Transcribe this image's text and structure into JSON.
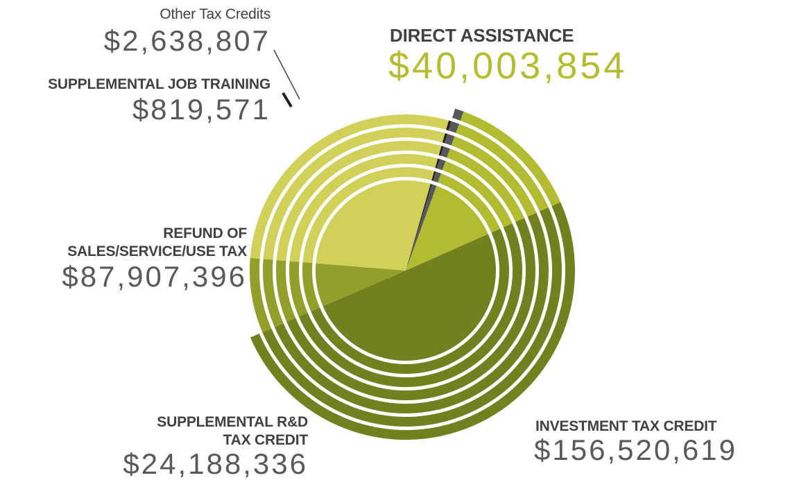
{
  "chart_data": {
    "type": "pie",
    "slices": [
      {
        "label": "DIRECT ASSISTANCE",
        "value": 40003854,
        "value_label": "$40,003,854",
        "color": "#b3bb31"
      },
      {
        "label": "INVESTMENT TAX CREDIT",
        "value": 156520619,
        "value_label": "$156,520,619",
        "color": "#738020"
      },
      {
        "label": "SUPPLEMENTAL R&D TAX CREDIT",
        "value": 24188336,
        "value_label": "$24,188,336",
        "color": "#939f2b"
      },
      {
        "label": "REFUND OF SALES/SERVICE/USE TAX",
        "value": 87907396,
        "value_label": "$87,907,396",
        "color": "#d1d15a"
      },
      {
        "label": "SUPPLEMENTAL JOB TRAINING",
        "value": 819571,
        "value_label": "$819,571",
        "color": "#231f20"
      },
      {
        "label": "Other Tax Credits",
        "value": 2638807,
        "value_label": "$2,638,807",
        "color": "#58595b"
      }
    ]
  },
  "labels": {
    "other": {
      "name": "Other Tax Credits",
      "value": "$2,638,807"
    },
    "job_training": {
      "name": "SUPPLEMENTAL JOB TRAINING",
      "value": "$819,571"
    },
    "direct": {
      "name": "DIRECT ASSISTANCE",
      "value": "$40,003,854"
    },
    "refund": {
      "name_line1": "REFUND OF",
      "name_line2": "SALES/SERVICE/USE TAX",
      "value": "$87,907,396"
    },
    "rd": {
      "name_line1": "SUPPLEMENTAL R&D",
      "name_line2": "TAX CREDIT",
      "value": "$24,188,336"
    },
    "investment": {
      "name": "INVESTMENT TAX CREDIT",
      "value": "$156,520,619"
    }
  }
}
